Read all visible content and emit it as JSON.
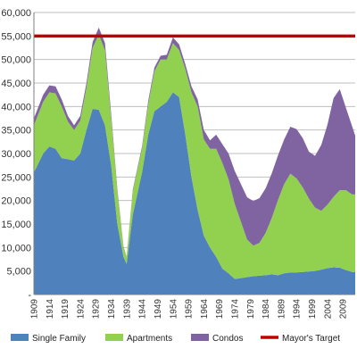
{
  "chart_data": {
    "type": "area",
    "stacked": true,
    "y_tick_labels": [
      "-",
      "5,000",
      "10,000",
      "15,000",
      "20,000",
      "25,000",
      "30,000",
      "35,000",
      "40,000",
      "45,000",
      "50,000",
      "55,000",
      "60,000"
    ],
    "y_tick_values": [
      0,
      5000,
      10000,
      15000,
      20000,
      25000,
      30000,
      35000,
      40000,
      45000,
      50000,
      55000,
      60000
    ],
    "ylim": [
      0,
      60000
    ],
    "xlim": [
      1909,
      2013
    ],
    "x_tick_labels": [
      "1909",
      "1914",
      "1919",
      "1924",
      "1929",
      "1934",
      "1939",
      "1944",
      "1949",
      "1954",
      "1959",
      "1964",
      "1969",
      "1974",
      "1979",
      "1984",
      "1989",
      "1994",
      "1999",
      "2004",
      "2009"
    ],
    "x_tick_values": [
      1909,
      1914,
      1919,
      1924,
      1929,
      1934,
      1939,
      1944,
      1949,
      1954,
      1959,
      1964,
      1969,
      1974,
      1979,
      1984,
      1989,
      1994,
      1999,
      2004,
      2009
    ],
    "grid": {
      "horizontal": true,
      "vertical": false
    },
    "legend_position": "bottom",
    "x": [
      1909,
      1912,
      1914,
      1916,
      1918,
      1920,
      1922,
      1924,
      1926,
      1928,
      1930,
      1932,
      1934,
      1936,
      1938,
      1939,
      1941,
      1944,
      1946,
      1948,
      1950,
      1952,
      1954,
      1956,
      1958,
      1960,
      1962,
      1964,
      1966,
      1968,
      1970,
      1972,
      1974,
      1976,
      1978,
      1980,
      1982,
      1984,
      1986,
      1988,
      1990,
      1992,
      1994,
      1996,
      1998,
      2000,
      2002,
      2004,
      2006,
      2008,
      2010,
      2012,
      2013
    ],
    "series": [
      {
        "name": "Single Family",
        "color": "#4f81bd",
        "values": [
          26000,
          30000,
          31500,
          31000,
          29000,
          28800,
          28500,
          30000,
          35000,
          39500,
          39300,
          36000,
          27500,
          15000,
          8000,
          6500,
          17000,
          26000,
          34000,
          39000,
          40000,
          41000,
          43000,
          42000,
          34000,
          25000,
          18000,
          12500,
          10000,
          8000,
          5500,
          4500,
          3300,
          3500,
          3700,
          3900,
          4000,
          4100,
          4300,
          4100,
          4500,
          4700,
          4700,
          4800,
          4900,
          5000,
          5300,
          5600,
          5800,
          5700,
          5200,
          4800,
          4800
        ]
      },
      {
        "name": "Apartments",
        "color": "#92d050",
        "values": [
          10000,
          11000,
          11500,
          11800,
          11000,
          8000,
          6500,
          7000,
          9000,
          13000,
          16000,
          16000,
          10000,
          7000,
          2000,
          1500,
          5000,
          5000,
          6500,
          8500,
          10000,
          9000,
          10500,
          10000,
          14000,
          18000,
          22000,
          20500,
          21000,
          23000,
          22500,
          20000,
          16000,
          12000,
          8000,
          6500,
          7000,
          9000,
          12000,
          16000,
          19000,
          21000,
          20000,
          18000,
          15500,
          13500,
          12500,
          13500,
          15000,
          16500,
          17000,
          16500,
          16500
        ]
      },
      {
        "name": "Condos",
        "color": "#8064a2",
        "values": [
          1500,
          1500,
          1500,
          1500,
          1500,
          1200,
          1000,
          1000,
          1000,
          1200,
          1500,
          1500,
          1000,
          500,
          200,
          100,
          300,
          500,
          700,
          800,
          800,
          1000,
          1200,
          1200,
          1000,
          1300,
          1500,
          2000,
          1800,
          3000,
          4000,
          5500,
          7000,
          8000,
          9000,
          9500,
          9500,
          9500,
          9500,
          9500,
          9500,
          10000,
          10500,
          10500,
          10000,
          11000,
          14000,
          17000,
          21000,
          21500,
          17500,
          14500,
          12500
        ]
      }
    ],
    "reference_lines": [
      {
        "name": "Mayor's Target",
        "color": "#c00000",
        "value": 55000
      }
    ]
  }
}
